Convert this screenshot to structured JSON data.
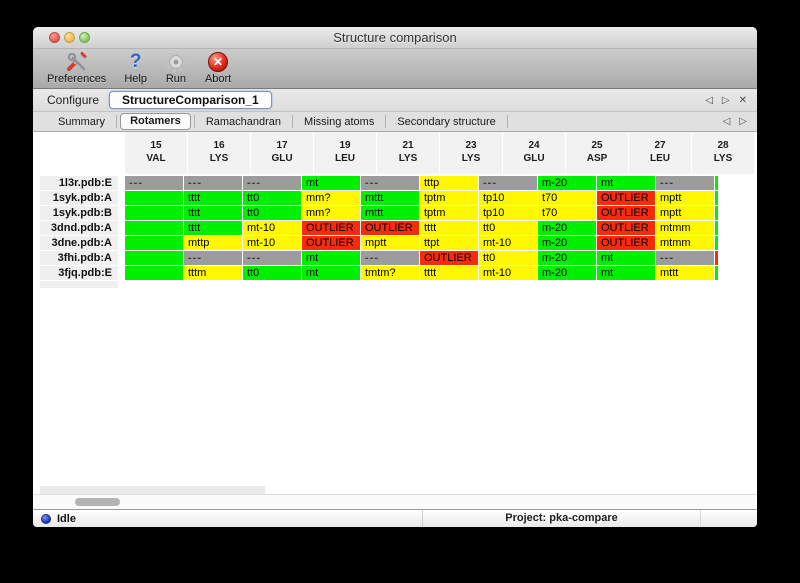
{
  "window": {
    "title": "Structure comparison"
  },
  "toolbar": {
    "items": [
      {
        "label": "Preferences",
        "icon": "tools-icon"
      },
      {
        "label": "Help",
        "icon": "question-icon",
        "glyph": "?"
      },
      {
        "label": "Run",
        "icon": "gear-icon"
      },
      {
        "label": "Abort",
        "icon": "abort-icon",
        "glyph": "✕"
      }
    ]
  },
  "configure": {
    "label": "Configure",
    "value": "StructureComparison_1",
    "nav": {
      "prev": "◁",
      "next": "▷",
      "close": "✕"
    }
  },
  "tabs": {
    "items": [
      {
        "label": "Summary",
        "selected": false
      },
      {
        "label": "Rotamers",
        "selected": true
      },
      {
        "label": "Ramachandran",
        "selected": false
      },
      {
        "label": "Missing atoms",
        "selected": false
      },
      {
        "label": "Secondary structure",
        "selected": false
      }
    ],
    "nav": {
      "prev": "◁",
      "next": "▷"
    }
  },
  "colors": {
    "favored": "#00f000",
    "allowed": "#fff700",
    "outlier": "#fa2b0d",
    "missing": "#9c9c9c"
  },
  "table": {
    "columns": [
      {
        "num": "15",
        "res": "VAL"
      },
      {
        "num": "16",
        "res": "LYS"
      },
      {
        "num": "17",
        "res": "GLU"
      },
      {
        "num": "19",
        "res": "LEU"
      },
      {
        "num": "21",
        "res": "LYS"
      },
      {
        "num": "23",
        "res": "LYS"
      },
      {
        "num": "24",
        "res": "GLU"
      },
      {
        "num": "25",
        "res": "ASP"
      },
      {
        "num": "27",
        "res": "LEU"
      },
      {
        "num": "28",
        "res": "LYS"
      }
    ],
    "rows": [
      {
        "label": "1l3r.pdb:E",
        "overflow": "favored",
        "cells": [
          {
            "text": "---",
            "status": "missing"
          },
          {
            "text": "---",
            "status": "missing"
          },
          {
            "text": "---",
            "status": "missing"
          },
          {
            "text": "mt",
            "status": "favored"
          },
          {
            "text": "---",
            "status": "missing"
          },
          {
            "text": "tttp",
            "status": "allowed"
          },
          {
            "text": "---",
            "status": "missing"
          },
          {
            "text": "m-20",
            "status": "favored"
          },
          {
            "text": "mt",
            "status": "favored"
          },
          {
            "text": "---",
            "status": "missing"
          }
        ]
      },
      {
        "label": "1syk.pdb:A",
        "overflow": "favored",
        "cells": [
          {
            "text": "",
            "status": "favored"
          },
          {
            "text": "tttt",
            "status": "favored"
          },
          {
            "text": "tt0",
            "status": "favored"
          },
          {
            "text": "mm?",
            "status": "allowed"
          },
          {
            "text": "mttt",
            "status": "favored"
          },
          {
            "text": "tptm",
            "status": "allowed"
          },
          {
            "text": "tp10",
            "status": "allowed"
          },
          {
            "text": "t70",
            "status": "allowed"
          },
          {
            "text": "OUTLIER",
            "status": "outlier"
          },
          {
            "text": "mptt",
            "status": "allowed"
          }
        ]
      },
      {
        "label": "1syk.pdb:B",
        "overflow": "favored",
        "cells": [
          {
            "text": "",
            "status": "favored"
          },
          {
            "text": "tttt",
            "status": "favored"
          },
          {
            "text": "tt0",
            "status": "favored"
          },
          {
            "text": "mm?",
            "status": "allowed"
          },
          {
            "text": "mttt",
            "status": "favored"
          },
          {
            "text": "tptm",
            "status": "allowed"
          },
          {
            "text": "tp10",
            "status": "allowed"
          },
          {
            "text": "t70",
            "status": "allowed"
          },
          {
            "text": "OUTLIER",
            "status": "outlier"
          },
          {
            "text": "mptt",
            "status": "allowed"
          }
        ]
      },
      {
        "label": "3dnd.pdb:A",
        "overflow": "favored",
        "cells": [
          {
            "text": "",
            "status": "favored"
          },
          {
            "text": "tttt",
            "status": "favored"
          },
          {
            "text": "mt-10",
            "status": "allowed"
          },
          {
            "text": "OUTLIER",
            "status": "outlier"
          },
          {
            "text": "OUTLIER",
            "status": "outlier"
          },
          {
            "text": "tttt",
            "status": "allowed"
          },
          {
            "text": "tt0",
            "status": "allowed"
          },
          {
            "text": "m-20",
            "status": "favored"
          },
          {
            "text": "OUTLIER",
            "status": "outlier"
          },
          {
            "text": "mtmm",
            "status": "allowed"
          }
        ]
      },
      {
        "label": "3dne.pdb:A",
        "overflow": "favored",
        "cells": [
          {
            "text": "",
            "status": "favored"
          },
          {
            "text": "mttp",
            "status": "allowed"
          },
          {
            "text": "mt-10",
            "status": "allowed"
          },
          {
            "text": "OUTLIER",
            "status": "outlier"
          },
          {
            "text": "mptt",
            "status": "allowed"
          },
          {
            "text": "ttpt",
            "status": "allowed"
          },
          {
            "text": "mt-10",
            "status": "allowed"
          },
          {
            "text": "m-20",
            "status": "favored"
          },
          {
            "text": "OUTLIER",
            "status": "outlier"
          },
          {
            "text": "mtmm",
            "status": "allowed"
          }
        ]
      },
      {
        "label": "3fhi.pdb:A",
        "overflow": "outlier",
        "cells": [
          {
            "text": "",
            "status": "favored"
          },
          {
            "text": "---",
            "status": "missing"
          },
          {
            "text": "---",
            "status": "missing"
          },
          {
            "text": "mt",
            "status": "favored"
          },
          {
            "text": "---",
            "status": "missing"
          },
          {
            "text": "OUTLIER",
            "status": "outlier"
          },
          {
            "text": "tt0",
            "status": "allowed"
          },
          {
            "text": "m-20",
            "status": "favored"
          },
          {
            "text": "mt",
            "status": "favored"
          },
          {
            "text": "---",
            "status": "missing"
          }
        ]
      },
      {
        "label": "3fjq.pdb:E",
        "overflow": "favored",
        "cells": [
          {
            "text": "",
            "status": "favored"
          },
          {
            "text": "tttm",
            "status": "allowed"
          },
          {
            "text": "tt0",
            "status": "favored"
          },
          {
            "text": "mt",
            "status": "favored"
          },
          {
            "text": "tmtm?",
            "status": "allowed"
          },
          {
            "text": "tttt",
            "status": "allowed"
          },
          {
            "text": "mt-10",
            "status": "allowed"
          },
          {
            "text": "m-20",
            "status": "favored"
          },
          {
            "text": "mt",
            "status": "favored"
          },
          {
            "text": "mttt",
            "status": "allowed"
          }
        ]
      }
    ]
  },
  "statusbar": {
    "status": "Idle",
    "project": "Project: pka-compare"
  }
}
